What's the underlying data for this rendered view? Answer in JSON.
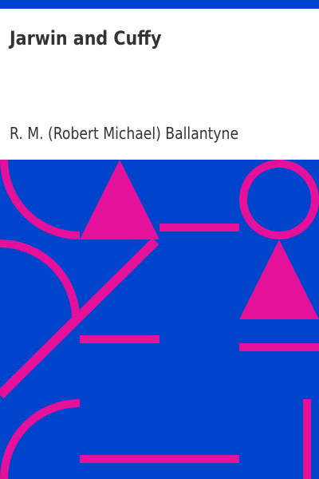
{
  "cover": {
    "title": "Jarwin and Cuffy",
    "author": "R. M. (Robert Michael) Ballantyne"
  },
  "colors": {
    "background": "#0044cc",
    "shape": "#e6119b",
    "text": "#333333",
    "title_area": "#ffffff"
  }
}
